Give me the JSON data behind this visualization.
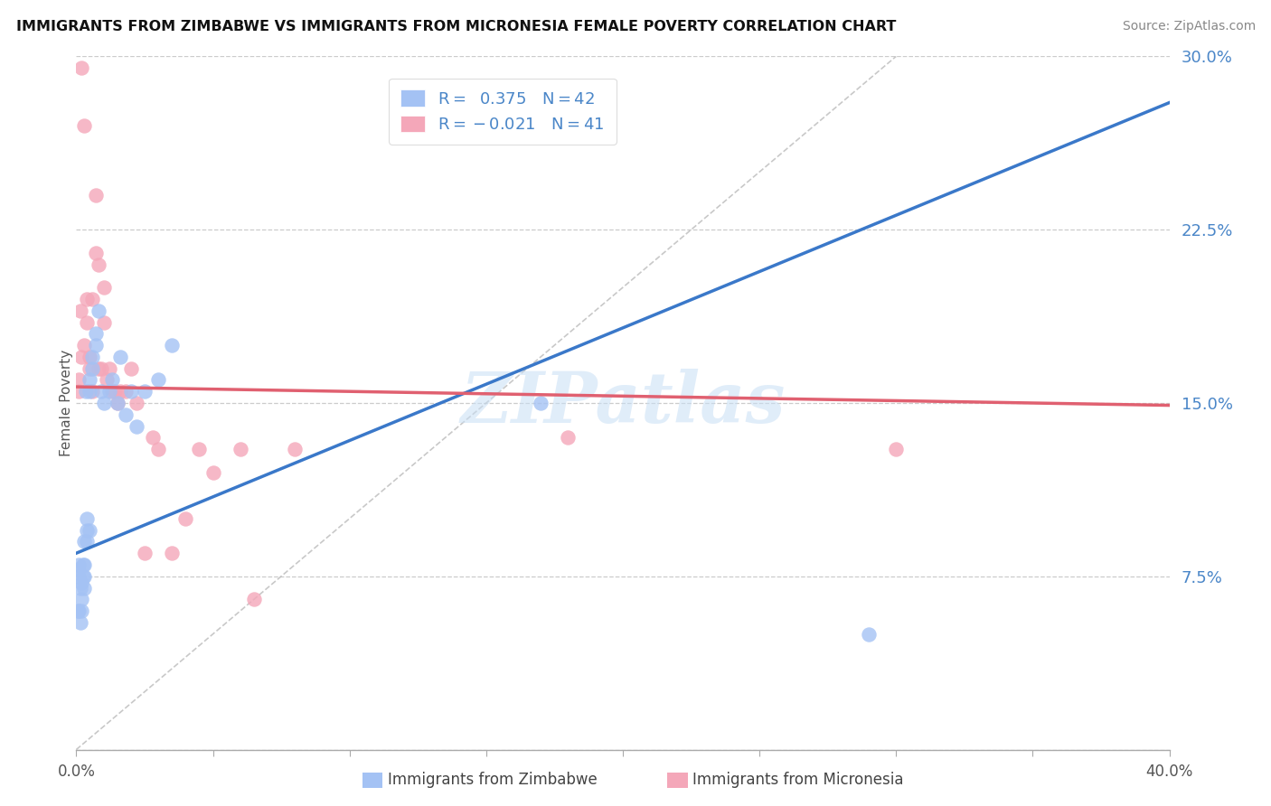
{
  "title": "IMMIGRANTS FROM ZIMBABWE VS IMMIGRANTS FROM MICRONESIA FEMALE POVERTY CORRELATION CHART",
  "source": "Source: ZipAtlas.com",
  "ylabel": "Female Poverty",
  "xlim": [
    0.0,
    0.4
  ],
  "ylim": [
    0.0,
    0.3
  ],
  "watermark": "ZIPatlas",
  "color_zimbabwe": "#a4c2f4",
  "color_micronesia": "#f4a7b9",
  "color_zimbabwe_line": "#3a78c9",
  "color_micronesia_line": "#e06070",
  "color_diagonal": "#bbbbbb",
  "yticks": [
    0.0,
    0.075,
    0.15,
    0.225,
    0.3
  ],
  "ytick_labels": [
    "",
    "7.5%",
    "15.0%",
    "22.5%",
    "30.0%"
  ],
  "zimbabwe_x": [
    0.0005,
    0.0005,
    0.001,
    0.001,
    0.001,
    0.0015,
    0.0015,
    0.002,
    0.002,
    0.002,
    0.0025,
    0.0025,
    0.003,
    0.003,
    0.003,
    0.003,
    0.0035,
    0.004,
    0.004,
    0.004,
    0.005,
    0.005,
    0.005,
    0.006,
    0.006,
    0.007,
    0.007,
    0.008,
    0.009,
    0.01,
    0.012,
    0.013,
    0.015,
    0.016,
    0.018,
    0.02,
    0.022,
    0.025,
    0.03,
    0.035,
    0.17,
    0.29
  ],
  "zimbabwe_y": [
    0.06,
    0.078,
    0.06,
    0.075,
    0.08,
    0.055,
    0.07,
    0.06,
    0.065,
    0.072,
    0.075,
    0.08,
    0.07,
    0.075,
    0.08,
    0.09,
    0.155,
    0.09,
    0.095,
    0.1,
    0.095,
    0.155,
    0.16,
    0.165,
    0.17,
    0.175,
    0.18,
    0.19,
    0.155,
    0.15,
    0.155,
    0.16,
    0.15,
    0.17,
    0.145,
    0.155,
    0.14,
    0.155,
    0.16,
    0.175,
    0.15,
    0.05
  ],
  "micronesia_x": [
    0.001,
    0.001,
    0.0015,
    0.002,
    0.002,
    0.003,
    0.003,
    0.004,
    0.004,
    0.005,
    0.005,
    0.006,
    0.006,
    0.007,
    0.007,
    0.008,
    0.008,
    0.009,
    0.01,
    0.01,
    0.011,
    0.012,
    0.013,
    0.014,
    0.015,
    0.016,
    0.018,
    0.02,
    0.022,
    0.025,
    0.028,
    0.03,
    0.035,
    0.04,
    0.045,
    0.05,
    0.06,
    0.065,
    0.08,
    0.18,
    0.3
  ],
  "micronesia_y": [
    0.155,
    0.16,
    0.19,
    0.17,
    0.295,
    0.27,
    0.175,
    0.195,
    0.185,
    0.165,
    0.17,
    0.195,
    0.155,
    0.24,
    0.215,
    0.21,
    0.165,
    0.165,
    0.2,
    0.185,
    0.16,
    0.165,
    0.155,
    0.155,
    0.15,
    0.155,
    0.155,
    0.165,
    0.15,
    0.085,
    0.135,
    0.13,
    0.085,
    0.1,
    0.13,
    0.12,
    0.13,
    0.065,
    0.13,
    0.135,
    0.13
  ]
}
